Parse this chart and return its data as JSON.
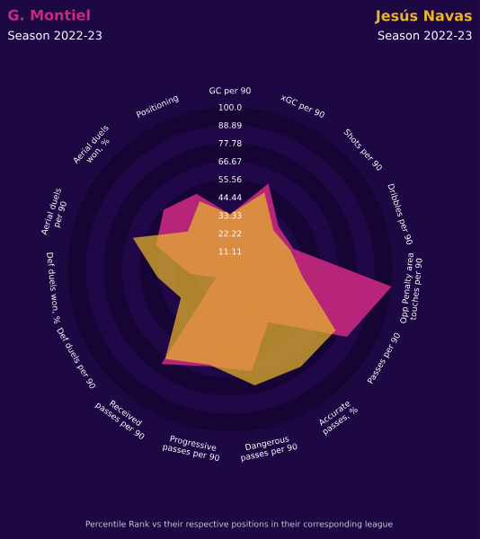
{
  "chart_data": {
    "type": "radar",
    "categories": [
      "GC per 90",
      "xGC per 90",
      "Shots per 90",
      "Dribbles per 90",
      "Opp Penalty area touches per 90",
      "Passes per 90",
      "Accurate passes, %",
      "Dangerous passes per 90",
      "Progressive passes per 90",
      "Received passes per 90",
      "Def duels per 90",
      "Def duels won, %",
      "Aerial duels per 90",
      "Aerial duels won, %",
      "Positioning"
    ],
    "series": [
      {
        "name": "G. Montiel",
        "color": "#c8297f",
        "values": [
          34,
          58,
          40,
          41,
          100,
          83,
          40,
          64,
          61,
          72,
          10,
          25,
          48,
          55,
          51
        ]
      },
      {
        "name": "Jesús Navas",
        "color": "#e8b42c",
        "values": [
          34,
          52,
          36,
          39,
          45,
          75,
          74,
          73,
          60,
          68,
          35,
          45,
          63,
          35,
          46
        ]
      }
    ],
    "ylim": [
      0,
      100
    ],
    "yticks": [
      {
        "value": 11.11,
        "label": "11.11"
      },
      {
        "value": 22.22,
        "label": "22.22"
      },
      {
        "value": 33.33,
        "label": "33.33"
      },
      {
        "value": 44.44,
        "label": "44.44"
      },
      {
        "value": 55.56,
        "label": "55.56"
      },
      {
        "value": 66.67,
        "label": "66.67"
      },
      {
        "value": 77.78,
        "label": "77.78"
      },
      {
        "value": 88.89,
        "label": "88.89"
      },
      {
        "value": 100,
        "label": "100.0"
      }
    ],
    "grid": true,
    "annotations": [
      "Season 2022-23",
      "Season 2022-23",
      "Percentile Rank vs their respective positions in their corresponding league"
    ]
  }
}
